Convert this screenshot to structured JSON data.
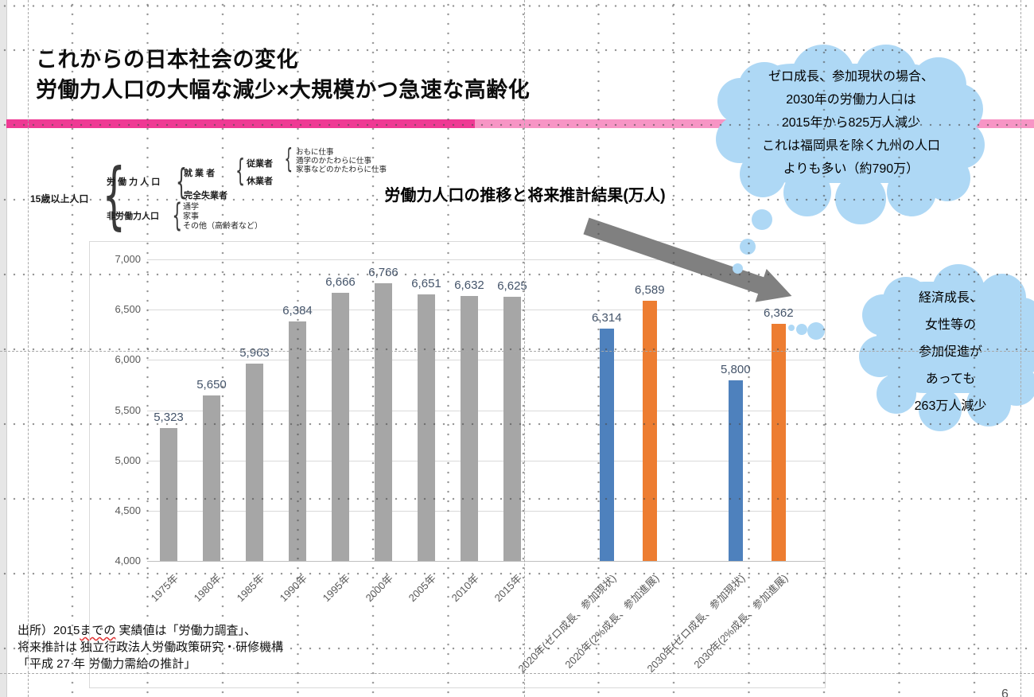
{
  "slide": {
    "title_line1": "これからの日本社会の変化",
    "title_line2": "労働力人口の大幅な減少×大規模かつ急速な高齢化",
    "page_number": "6"
  },
  "diagram": {
    "root": "15歳以上人口",
    "labor_force": "労 働 力 人 口",
    "employed": "就 業 者",
    "worker": "従業者",
    "worker_items": [
      "おもに仕事",
      "通学のかたわらに仕事",
      "家事などのかたわらに仕事"
    ],
    "on_leave": "休業者",
    "unemployed": "完全失業者",
    "non_labor": "非労働力人口",
    "non_labor_items": [
      "通学",
      "家事",
      "その他（高齢者など）"
    ]
  },
  "callouts": {
    "top_cloud": "ゼロ成長、参加現状の場合、\n2030年の労働力人口は\n2015年から825万人減少\nこれは福岡県を除く九州の人口\nよりも多い（約790万）",
    "right_cloud": "経済成長、\n女性等の\n参加促進が\nあっても\n263万人減少"
  },
  "chart_data": {
    "type": "bar",
    "title": "労働力人口の推移と将来推計結果(万人)",
    "categories": [
      "1975年",
      "1980年",
      "1985年",
      "1990年",
      "1995年",
      "2000年",
      "2005年",
      "2010年",
      "2015年",
      "2020年(ゼロ成長、参加現状)",
      "2020年(2%成長、参加進展)",
      "2030年(ゼロ成長、参加現状)",
      "2030年(2%成長、参加進展)"
    ],
    "values": [
      5323,
      5650,
      5963,
      6384,
      6666,
      6766,
      6651,
      6632,
      6625,
      6314,
      6589,
      5800,
      6362
    ],
    "value_labels": [
      "5,323",
      "5,650",
      "5,963",
      "6,384",
      "6,666",
      "6,766",
      "6,651",
      "6,632",
      "6,625",
      "6,314",
      "6,589",
      "5,800",
      "6,362"
    ],
    "colors": [
      "#a6a6a6",
      "#a6a6a6",
      "#a6a6a6",
      "#a6a6a6",
      "#a6a6a6",
      "#a6a6a6",
      "#a6a6a6",
      "#a6a6a6",
      "#a6a6a6",
      "#4e81bd",
      "#ed7d31",
      "#4e81bd",
      "#ed7d31"
    ],
    "slots": [
      0,
      1,
      2,
      3,
      4,
      5,
      6,
      7,
      8,
      10.2,
      11.2,
      13.2,
      14.2
    ],
    "ylim": [
      4000,
      7000
    ],
    "yticks": [
      {
        "value": 7000,
        "label": "7,000"
      },
      {
        "value": 6500,
        "label": "6,500"
      },
      {
        "value": 6000,
        "label": "6,000"
      },
      {
        "value": 5500,
        "label": "5,500"
      },
      {
        "value": 5000,
        "label": "5,000"
      },
      {
        "value": 4500,
        "label": "4,500"
      },
      {
        "value": 4000,
        "label": "4,000"
      }
    ],
    "grid": true,
    "legend_position": "none",
    "xlabel": "",
    "ylabel": ""
  },
  "source": {
    "line1_prefix": "出所）2015",
    "line1_squiggle": "までの",
    "line1_suffix": " 実績値は「労働力調査」、",
    "line2": "将来推計は 独立行政法人労働政策研究・研修機構",
    "line3": "「平成 27 年 労働力需給の推計」"
  },
  "colors": {
    "accent_pink_dark": "#ef3a94",
    "accent_pink_light": "#f795c5",
    "bar_gray": "#a6a6a6",
    "bar_blue": "#4e81bd",
    "bar_orange": "#ed7d31",
    "cloud_blue": "#aed8f5",
    "arrow_gray": "#808080",
    "label_blue_gray": "#44546a"
  }
}
